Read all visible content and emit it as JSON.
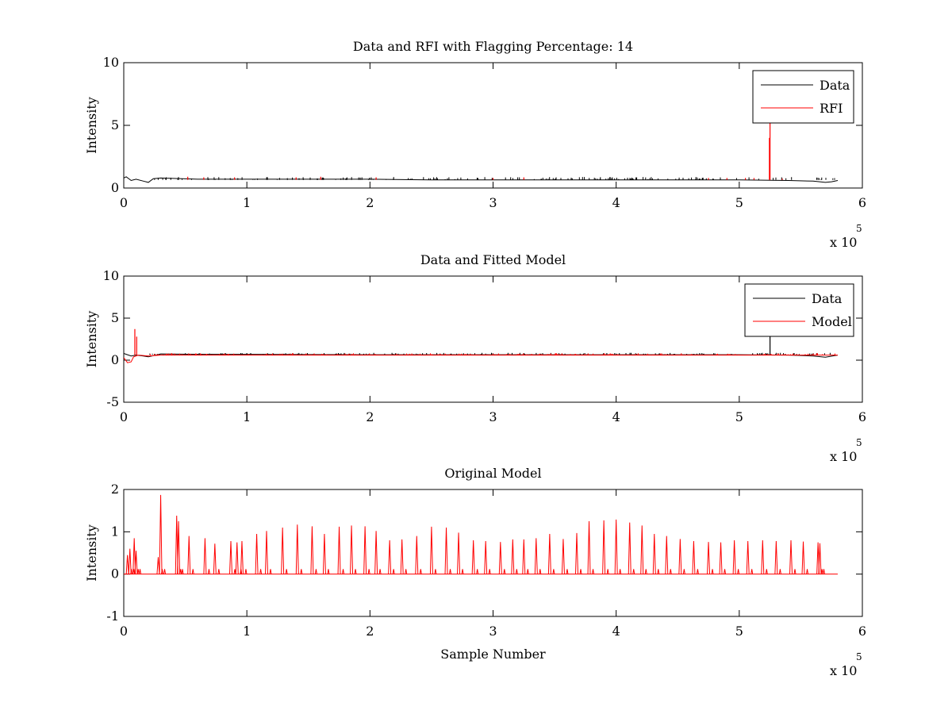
{
  "colors": {
    "data": "#000000",
    "rfi": "#ff0000",
    "model": "#ff0000",
    "axes": "#000000",
    "background": "#ffffff"
  },
  "chart_data": [
    {
      "type": "line",
      "title": "Data and RFI with Flagging Percentage: 14",
      "xlabel": "",
      "ylabel": "Intensity",
      "xlim": [
        0,
        600000
      ],
      "ylim": [
        0,
        10
      ],
      "xticks": [
        0,
        1,
        2,
        3,
        4,
        5,
        6
      ],
      "yticks": [
        0,
        5,
        10
      ],
      "x_multiplier_label": "x 10",
      "x_multiplier_exponent": "5",
      "legend": {
        "placement": "top-right",
        "entries": [
          "Data",
          "RFI"
        ]
      },
      "series": [
        {
          "name": "Data",
          "color": "#000000",
          "baseline": 0.65,
          "x": [
            0,
            2000,
            6000,
            10000,
            16000,
            20000,
            24000,
            30000,
            60000,
            100000,
            150000,
            200000,
            250000,
            300000,
            350000,
            400000,
            450000,
            500000,
            540000,
            560000,
            570000,
            575000,
            580000
          ],
          "y": [
            0.8,
            0.9,
            0.6,
            0.7,
            0.55,
            0.45,
            0.75,
            0.8,
            0.7,
            0.7,
            0.7,
            0.7,
            0.65,
            0.65,
            0.65,
            0.65,
            0.65,
            0.65,
            0.6,
            0.55,
            0.45,
            0.5,
            0.6
          ]
        },
        {
          "name": "RFI",
          "color": "#ff0000",
          "spikes": [
            {
              "x": 525000,
              "y": 5.3
            },
            {
              "x": 524500,
              "y": 4.0
            },
            {
              "x": 52000,
              "y": 0.9
            },
            {
              "x": 65000,
              "y": 0.85
            },
            {
              "x": 90000,
              "y": 0.85
            },
            {
              "x": 140000,
              "y": 0.85
            },
            {
              "x": 160000,
              "y": 0.9
            },
            {
              "x": 205000,
              "y": 0.85
            },
            {
              "x": 300000,
              "y": 0.8
            },
            {
              "x": 325000,
              "y": 0.85
            },
            {
              "x": 475000,
              "y": 0.8
            },
            {
              "x": 490000,
              "y": 0.8
            },
            {
              "x": 505000,
              "y": 0.8
            },
            {
              "x": 512000,
              "y": 0.8
            },
            {
              "x": 535000,
              "y": 0.75
            }
          ]
        }
      ]
    },
    {
      "type": "line",
      "title": "Data and Fitted Model",
      "xlabel": "",
      "ylabel": "Intensity",
      "xlim": [
        0,
        600000
      ],
      "ylim": [
        -5,
        10
      ],
      "xticks": [
        0,
        1,
        2,
        3,
        4,
        5,
        6
      ],
      "yticks": [
        -5,
        0,
        5,
        10
      ],
      "x_multiplier_label": "x 10",
      "x_multiplier_exponent": "5",
      "legend": {
        "placement": "top-right",
        "entries": [
          "Data",
          "Model"
        ]
      },
      "series": [
        {
          "name": "Data",
          "color": "#000000",
          "baseline": 0.65,
          "x": [
            0,
            2000,
            6000,
            10000,
            16000,
            20000,
            30000,
            60000,
            100000,
            200000,
            300000,
            400000,
            500000,
            540000,
            560000,
            570000,
            580000
          ],
          "y": [
            0.8,
            0.7,
            0.5,
            0.6,
            0.5,
            0.4,
            0.75,
            0.7,
            0.7,
            0.65,
            0.65,
            0.65,
            0.65,
            0.6,
            0.5,
            0.35,
            0.6
          ],
          "spikes": [
            {
              "x": 525000,
              "y": 2.8
            }
          ]
        },
        {
          "name": "Model",
          "color": "#ff0000",
          "baseline": 0.6,
          "x": [
            0,
            3000,
            6000,
            8000,
            12000,
            20000,
            30000,
            580000
          ],
          "y": [
            0.3,
            -0.3,
            -0.2,
            0.4,
            0.6,
            0.5,
            0.6,
            0.6
          ],
          "spikes": [
            {
              "x": 9000,
              "y": 3.7
            },
            {
              "x": 10500,
              "y": 2.8
            }
          ]
        }
      ]
    },
    {
      "type": "line",
      "title": "Original Model",
      "xlabel": "Sample Number",
      "ylabel": "Intensity",
      "xlim": [
        0,
        600000
      ],
      "ylim": [
        -1,
        2
      ],
      "xticks": [
        0,
        1,
        2,
        3,
        4,
        5,
        6
      ],
      "yticks": [
        -1,
        0,
        1,
        2
      ],
      "x_multiplier_label": "x 10",
      "x_multiplier_exponent": "5",
      "series": [
        {
          "color": "#ff0000",
          "baseline": 0,
          "x_end": 580000,
          "spikes": [
            {
              "x": 3000,
              "y": 0.45
            },
            {
              "x": 5000,
              "y": 0.6
            },
            {
              "x": 8500,
              "y": 0.85
            },
            {
              "x": 10000,
              "y": 0.55
            },
            {
              "x": 28000,
              "y": 0.4
            },
            {
              "x": 30000,
              "y": 1.87
            },
            {
              "x": 43000,
              "y": 1.38
            },
            {
              "x": 44500,
              "y": 1.25
            },
            {
              "x": 53000,
              "y": 0.9
            },
            {
              "x": 66000,
              "y": 0.85
            },
            {
              "x": 74000,
              "y": 0.72
            },
            {
              "x": 87000,
              "y": 0.78
            },
            {
              "x": 92000,
              "y": 0.75
            },
            {
              "x": 96000,
              "y": 0.78
            },
            {
              "x": 108000,
              "y": 0.95
            },
            {
              "x": 116000,
              "y": 1.02
            },
            {
              "x": 129000,
              "y": 1.1
            },
            {
              "x": 141000,
              "y": 1.17
            },
            {
              "x": 153000,
              "y": 1.13
            },
            {
              "x": 163000,
              "y": 0.95
            },
            {
              "x": 175000,
              "y": 1.12
            },
            {
              "x": 185000,
              "y": 1.15
            },
            {
              "x": 196000,
              "y": 1.13
            },
            {
              "x": 205000,
              "y": 1.02
            },
            {
              "x": 216000,
              "y": 0.8
            },
            {
              "x": 226000,
              "y": 0.82
            },
            {
              "x": 238000,
              "y": 0.9
            },
            {
              "x": 250000,
              "y": 1.12
            },
            {
              "x": 262000,
              "y": 1.1
            },
            {
              "x": 272000,
              "y": 0.98
            },
            {
              "x": 284000,
              "y": 0.8
            },
            {
              "x": 294000,
              "y": 0.78
            },
            {
              "x": 306000,
              "y": 0.76
            },
            {
              "x": 316000,
              "y": 0.82
            },
            {
              "x": 325000,
              "y": 0.82
            },
            {
              "x": 335000,
              "y": 0.85
            },
            {
              "x": 346000,
              "y": 0.95
            },
            {
              "x": 357000,
              "y": 0.83
            },
            {
              "x": 368000,
              "y": 0.97
            },
            {
              "x": 378000,
              "y": 1.25
            },
            {
              "x": 390000,
              "y": 1.27
            },
            {
              "x": 400000,
              "y": 1.29
            },
            {
              "x": 411000,
              "y": 1.22
            },
            {
              "x": 421000,
              "y": 1.15
            },
            {
              "x": 431000,
              "y": 0.95
            },
            {
              "x": 441000,
              "y": 0.9
            },
            {
              "x": 452000,
              "y": 0.83
            },
            {
              "x": 463000,
              "y": 0.78
            },
            {
              "x": 475000,
              "y": 0.76
            },
            {
              "x": 485000,
              "y": 0.75
            },
            {
              "x": 496000,
              "y": 0.8
            },
            {
              "x": 507000,
              "y": 0.78
            },
            {
              "x": 519000,
              "y": 0.8
            },
            {
              "x": 530000,
              "y": 0.78
            },
            {
              "x": 542000,
              "y": 0.8
            },
            {
              "x": 552000,
              "y": 0.77
            },
            {
              "x": 564000,
              "y": 0.75
            },
            {
              "x": 565500,
              "y": 0.73
            }
          ]
        }
      ]
    }
  ]
}
